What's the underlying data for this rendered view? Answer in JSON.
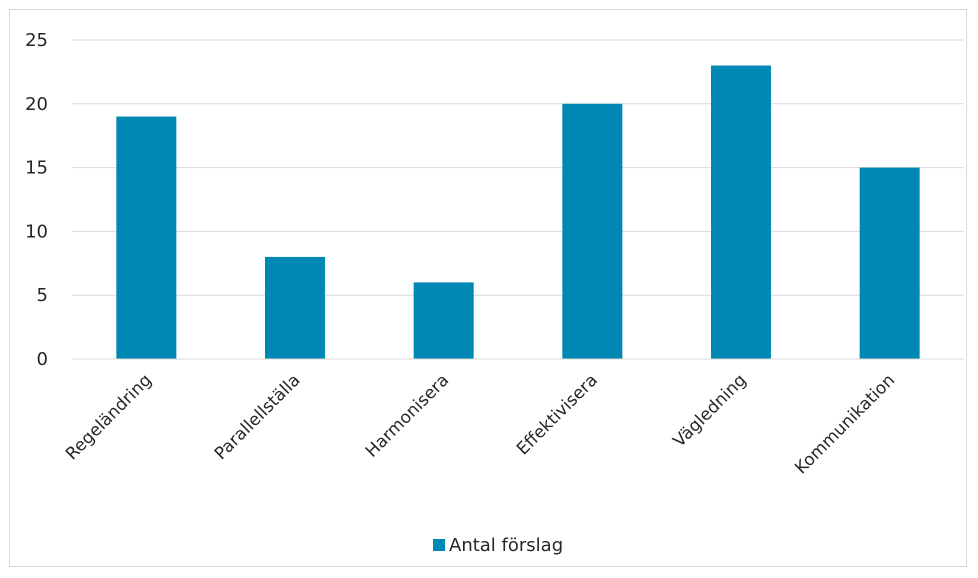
{
  "chart_data": {
    "type": "bar",
    "categories": [
      "Regeländring",
      "Parallellställa",
      "Harmonisera",
      "Effektivisera",
      "Vägledning",
      "Kommunikation"
    ],
    "series": [
      {
        "name": "Antal förslag",
        "values": [
          19,
          8,
          6,
          20,
          23,
          15
        ],
        "color": "#0088B5"
      }
    ],
    "ylim": [
      0,
      25
    ],
    "yticks": [
      0,
      5,
      10,
      15,
      20,
      25
    ],
    "grid": true,
    "legend_position": "bottom"
  }
}
